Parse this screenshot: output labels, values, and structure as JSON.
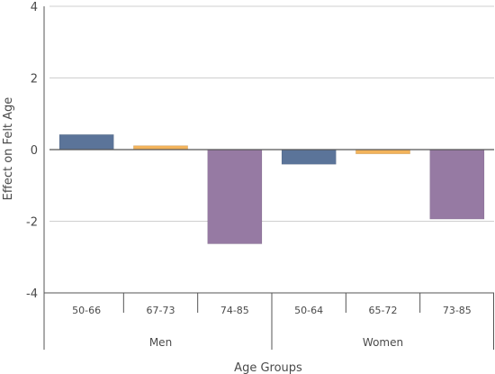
{
  "chart_data": {
    "type": "bar",
    "title": "",
    "xlabel": "Age Groups",
    "ylabel": "Effect on Felt Age",
    "ylim": [
      -4,
      4
    ],
    "yticks": [
      -4,
      -2,
      0,
      2,
      4
    ],
    "grid": true,
    "groups": [
      {
        "label": "Men",
        "categories": [
          "50-66",
          "67-73",
          "74-85"
        ]
      },
      {
        "label": "Women",
        "categories": [
          "50-64",
          "65-72",
          "73-85"
        ]
      }
    ],
    "categories": [
      "50-66",
      "67-73",
      "74-85",
      "50-64",
      "65-72",
      "73-85"
    ],
    "values": [
      0.42,
      0.11,
      -2.63,
      -0.41,
      -0.12,
      -1.94
    ],
    "bar_colors": [
      "#5b7499",
      "#f2b35b",
      "#967aa3",
      "#5b7499",
      "#f2b35b",
      "#967aa3"
    ]
  }
}
